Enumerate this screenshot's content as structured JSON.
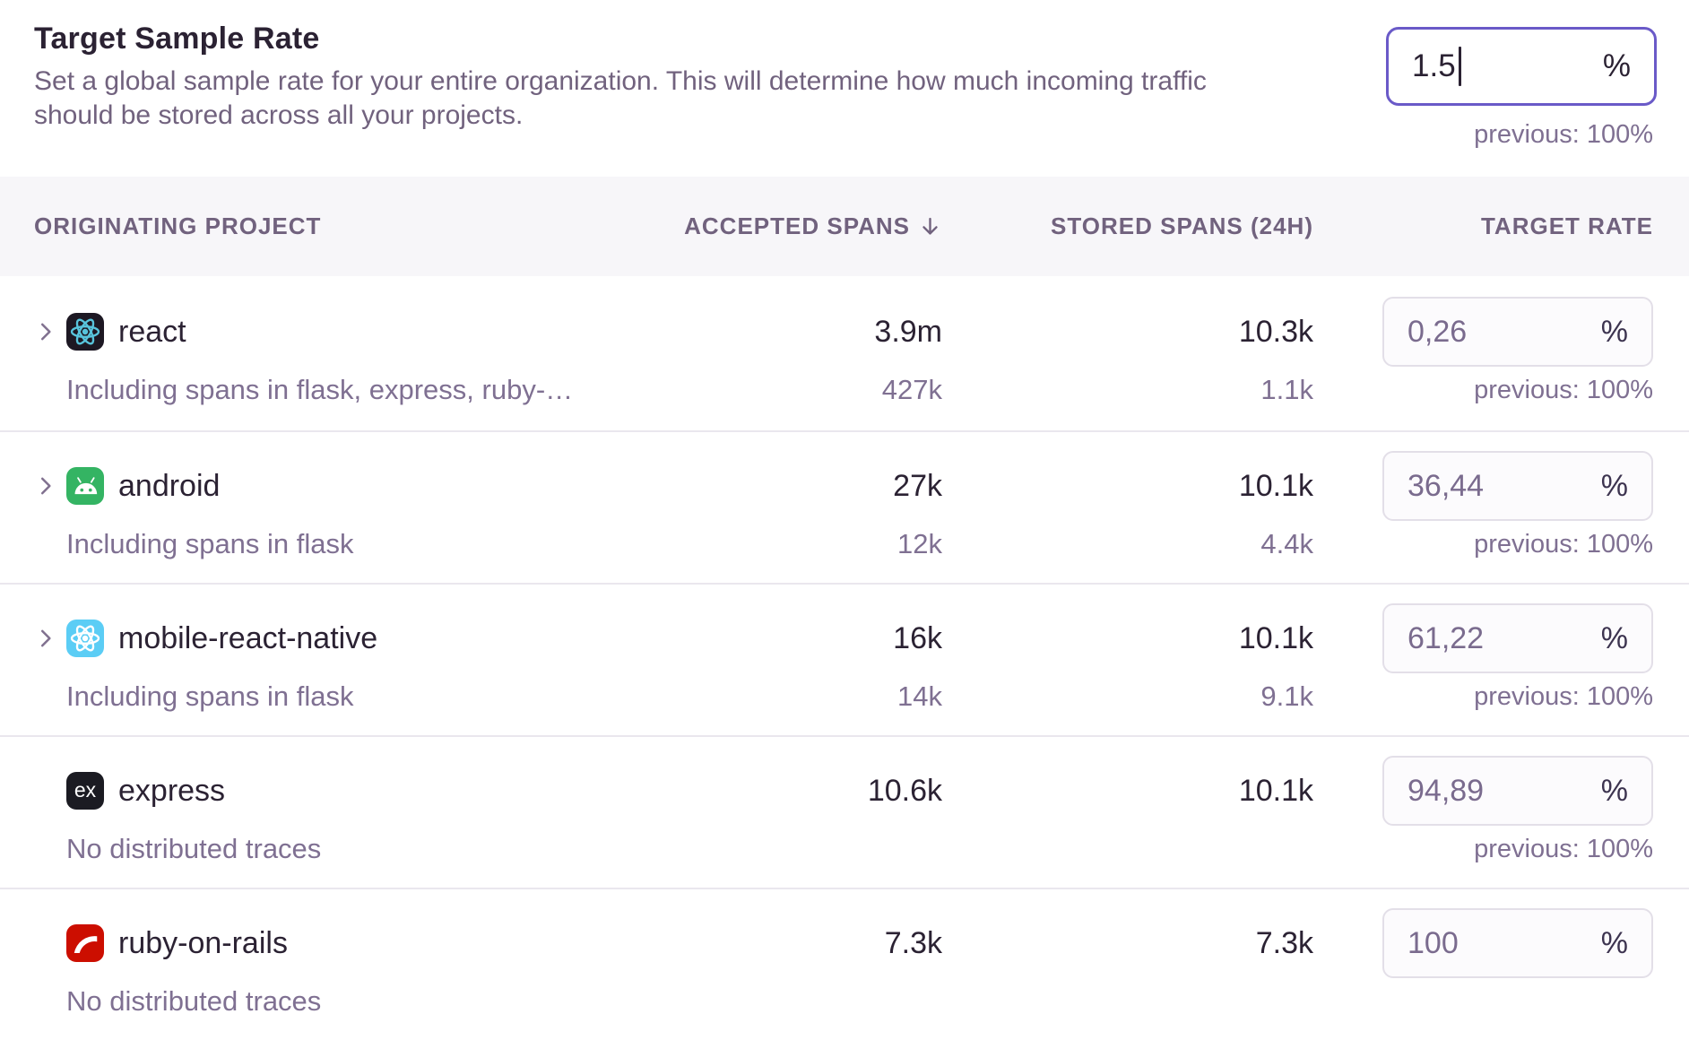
{
  "header": {
    "title": "Target Sample Rate",
    "description": "Set a global sample rate for your entire organization. This will determine how much incoming traffic should be stored across all your projects.",
    "sample_rate_input": {
      "value": "1.5",
      "unit": "%"
    },
    "previous_label": "previous: 100%"
  },
  "table": {
    "columns": [
      "ORIGINATING PROJECT",
      "ACCEPTED SPANS",
      "STORED SPANS (24H)",
      "TARGET RATE"
    ],
    "sort_icon": "arrow-down",
    "rate_unit": "%",
    "rows": [
      {
        "name": "react",
        "icon": "react",
        "expandable": true,
        "accepted": "3.9m",
        "stored": "10.3k",
        "rate": {
          "value": "0,26"
        },
        "sub": {
          "label": "Including spans in flask, express, ruby-…",
          "accepted": "427k",
          "stored": "1.1k",
          "previous": "previous: 100%"
        }
      },
      {
        "name": "android",
        "icon": "android",
        "expandable": true,
        "accepted": "27k",
        "stored": "10.1k",
        "rate": {
          "value": "36,44"
        },
        "sub": {
          "label": "Including spans in flask",
          "accepted": "12k",
          "stored": "4.4k",
          "previous": "previous: 100%"
        }
      },
      {
        "name": "mobile-react-native",
        "icon": "react-native",
        "expandable": true,
        "accepted": "16k",
        "stored": "10.1k",
        "rate": {
          "value": "61,22"
        },
        "sub": {
          "label": "Including spans in flask",
          "accepted": "14k",
          "stored": "9.1k",
          "previous": "previous: 100%"
        }
      },
      {
        "name": "express",
        "icon": "express",
        "icon_label": "ex",
        "expandable": false,
        "accepted": "10.6k",
        "stored": "10.1k",
        "rate": {
          "value": "94,89"
        },
        "sub": {
          "label": "No distributed traces",
          "accepted": "",
          "stored": "",
          "previous": "previous: 100%"
        }
      },
      {
        "name": "ruby-on-rails",
        "icon": "ruby",
        "expandable": false,
        "accepted": "7.3k",
        "stored": "7.3k",
        "rate": {
          "value": "100"
        },
        "sub": {
          "label": "No distributed traces",
          "accepted": "",
          "stored": "",
          "previous": ""
        }
      }
    ]
  },
  "colors": {
    "accent_focus": "#6a5ac8",
    "text_dark": "#2b2233",
    "text_muted": "#7f7092",
    "header_band_bg": "#f7f6f9",
    "divider": "#eae7ee",
    "input_border": "#e3dfe8",
    "input_bg": "#fcfbfd",
    "icon_react_bg": "#1d1823",
    "icon_react_fg": "#58c4dc",
    "icon_android_bg": "#34b463",
    "icon_react_native_bg": "#5bcdf5",
    "icon_express_bg": "#1b1b22",
    "icon_ruby_bg": "#cc0e00"
  }
}
